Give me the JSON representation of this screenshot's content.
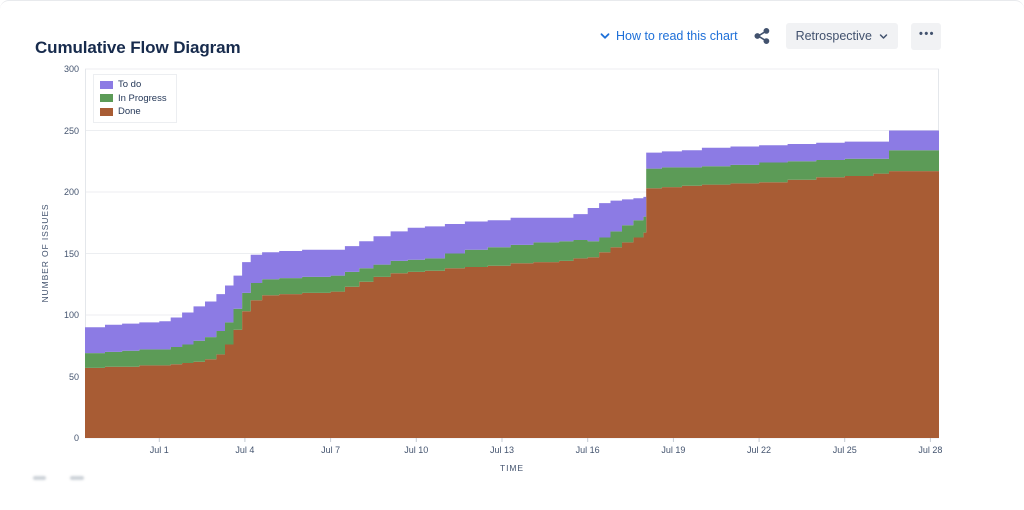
{
  "header": {
    "title": "Cumulative Flow Diagram",
    "how_to_read_label": "How to read this chart",
    "dropdown_label": "Retrospective",
    "more_label": "•••",
    "link_color": "#1D6FD8",
    "title_color": "#172B4D",
    "button_bg": "#F1F2F4",
    "button_text_color": "#42526E"
  },
  "chart_data": {
    "type": "area",
    "stacked": true,
    "title": "Cumulative Flow Diagram",
    "xlabel": "TIME",
    "ylabel": "NUMBER OF ISSUES",
    "ylim": [
      0,
      300
    ],
    "yticks": [
      0,
      50,
      100,
      150,
      200,
      250,
      300
    ],
    "grid": "horizontal",
    "legend_position": "top-left",
    "axis_text_color": "#44546F",
    "grid_color": "#ECEEF1",
    "x_encoding": "days, Jul 1 = 1 (negative = late June)",
    "x_domain_days": [
      -1.6,
      28.3
    ],
    "xticks": [
      {
        "x": 1,
        "label": "Jul 1"
      },
      {
        "x": 4,
        "label": "Jul 4"
      },
      {
        "x": 7,
        "label": "Jul 7"
      },
      {
        "x": 10,
        "label": "Jul 10"
      },
      {
        "x": 13,
        "label": "Jul 13"
      },
      {
        "x": 16,
        "label": "Jul 16"
      },
      {
        "x": 19,
        "label": "Jul 19"
      },
      {
        "x": 22,
        "label": "Jul 22"
      },
      {
        "x": 25,
        "label": "Jul 25"
      },
      {
        "x": 28,
        "label": "Jul 28"
      }
    ],
    "x_days": [
      -1.6,
      -0.9,
      -0.3,
      0.3,
      1,
      1.4,
      1.8,
      2.2,
      2.6,
      3,
      3.3,
      3.6,
      3.9,
      4.2,
      4.6,
      5.2,
      6,
      7,
      7.5,
      8,
      8.5,
      9.1,
      9.7,
      10.3,
      11,
      11.7,
      12.5,
      13.3,
      14.1,
      15,
      15.5,
      16,
      16.4,
      16.8,
      17.2,
      17.6,
      17.95,
      18.05,
      18.6,
      19.3,
      20,
      21,
      22,
      23,
      24,
      25,
      26,
      26.55,
      27.3,
      28.3
    ],
    "stack_order_bottom_to_top": [
      "Done",
      "In Progress",
      "To do"
    ],
    "series": [
      {
        "name": "To do",
        "color": "#8C7BE4",
        "values": [
          21,
          22,
          22,
          22,
          23,
          24,
          26,
          28,
          29,
          30,
          30,
          27,
          25,
          23,
          22,
          22,
          22,
          21,
          21,
          22,
          23,
          24,
          26,
          26,
          24,
          23,
          22,
          22,
          20,
          19,
          21,
          27,
          28,
          25,
          21,
          18,
          16,
          13,
          13,
          14,
          15,
          15,
          14,
          14,
          14,
          14,
          14,
          16,
          16,
          16
        ]
      },
      {
        "name": "In Progress",
        "color": "#5C9B57",
        "values": [
          12,
          12,
          13,
          13,
          13,
          14,
          15,
          17,
          18,
          19,
          18,
          17,
          15,
          14,
          13,
          13,
          13,
          13,
          12,
          11,
          10,
          10,
          10,
          10,
          12,
          14,
          15,
          15,
          16,
          16,
          15,
          13,
          12,
          13,
          14,
          14,
          13,
          16,
          16,
          15,
          15,
          15,
          16,
          15,
          14,
          14,
          12,
          17,
          17,
          16
        ]
      },
      {
        "name": "Done",
        "color": "#A85C34",
        "values": [
          57,
          58,
          58,
          59,
          59,
          60,
          61,
          62,
          64,
          68,
          76,
          88,
          103,
          112,
          116,
          117,
          118,
          119,
          123,
          127,
          131,
          134,
          135,
          136,
          138,
          139,
          140,
          142,
          143,
          144,
          146,
          147,
          151,
          155,
          159,
          163,
          167,
          203,
          204,
          205,
          206,
          207,
          208,
          210,
          212,
          213,
          215,
          217,
          217,
          218
        ]
      }
    ]
  }
}
